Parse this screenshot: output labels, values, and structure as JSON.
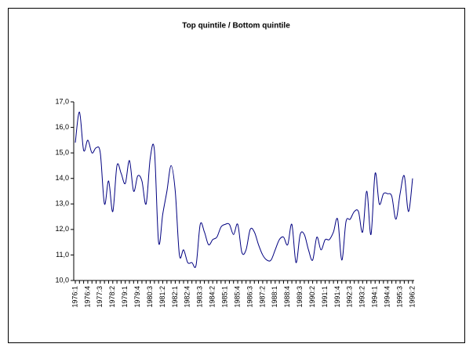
{
  "chart_data": {
    "type": "line",
    "title": "Top quintile / Bottom quintile",
    "categories": [
      "1976:1",
      null,
      null,
      "1976:4",
      null,
      null,
      "1977:3",
      null,
      null,
      "1978:2",
      null,
      null,
      "1979:1",
      null,
      null,
      "1979:4",
      null,
      null,
      "1980:3",
      null,
      null,
      "1981:2",
      null,
      null,
      "1982:1",
      null,
      null,
      "1982:4",
      null,
      null,
      "1983:3",
      null,
      null,
      "1984:2",
      null,
      null,
      "1985:1",
      null,
      null,
      "1985:4",
      null,
      null,
      "1986:3",
      null,
      null,
      "1987:2",
      null,
      null,
      "1988:1",
      null,
      null,
      "1988:4",
      null,
      null,
      "1989:3",
      null,
      null,
      "1990:2",
      null,
      null,
      "1991:1",
      null,
      null,
      "1991:4",
      null,
      null,
      "1992:3",
      null,
      null,
      "1993:2",
      null,
      null,
      "1994:1",
      null,
      null,
      "1994:4",
      null,
      null,
      "1995:3",
      null,
      null,
      "1996:2"
    ],
    "values": [
      15.4,
      16.6,
      15.1,
      15.5,
      15.0,
      15.2,
      15.0,
      13.0,
      13.9,
      12.7,
      14.5,
      14.2,
      13.8,
      14.7,
      13.5,
      14.1,
      13.9,
      13.0,
      14.8,
      15.1,
      11.5,
      12.6,
      13.5,
      14.5,
      13.5,
      11.0,
      11.2,
      10.7,
      10.7,
      10.6,
      12.2,
      11.9,
      11.4,
      11.6,
      11.7,
      12.1,
      12.2,
      12.2,
      11.8,
      12.2,
      11.1,
      11.2,
      12.0,
      11.9,
      11.4,
      11.0,
      10.8,
      10.8,
      11.2,
      11.6,
      11.7,
      11.4,
      12.2,
      10.7,
      11.8,
      11.8,
      11.2,
      10.8,
      11.7,
      11.2,
      11.6,
      11.6,
      11.9,
      12.4,
      10.8,
      12.3,
      12.4,
      12.7,
      12.7,
      11.9,
      13.5,
      11.8,
      14.2,
      13.0,
      13.4,
      13.4,
      13.3,
      12.4,
      13.4,
      14.1,
      12.7,
      14.0
    ],
    "color": "#000080",
    "ylim": [
      10,
      17
    ],
    "yticks": [
      {
        "value": 10,
        "label": "10,0"
      },
      {
        "value": 11,
        "label": "11,0"
      },
      {
        "value": 12,
        "label": "12,0"
      },
      {
        "value": 13,
        "label": "13,0"
      },
      {
        "value": 14,
        "label": "14,0"
      },
      {
        "value": 15,
        "label": "15,0"
      },
      {
        "value": 16,
        "label": "16,0"
      },
      {
        "value": 17,
        "label": "17,0"
      }
    ],
    "grid": false
  }
}
